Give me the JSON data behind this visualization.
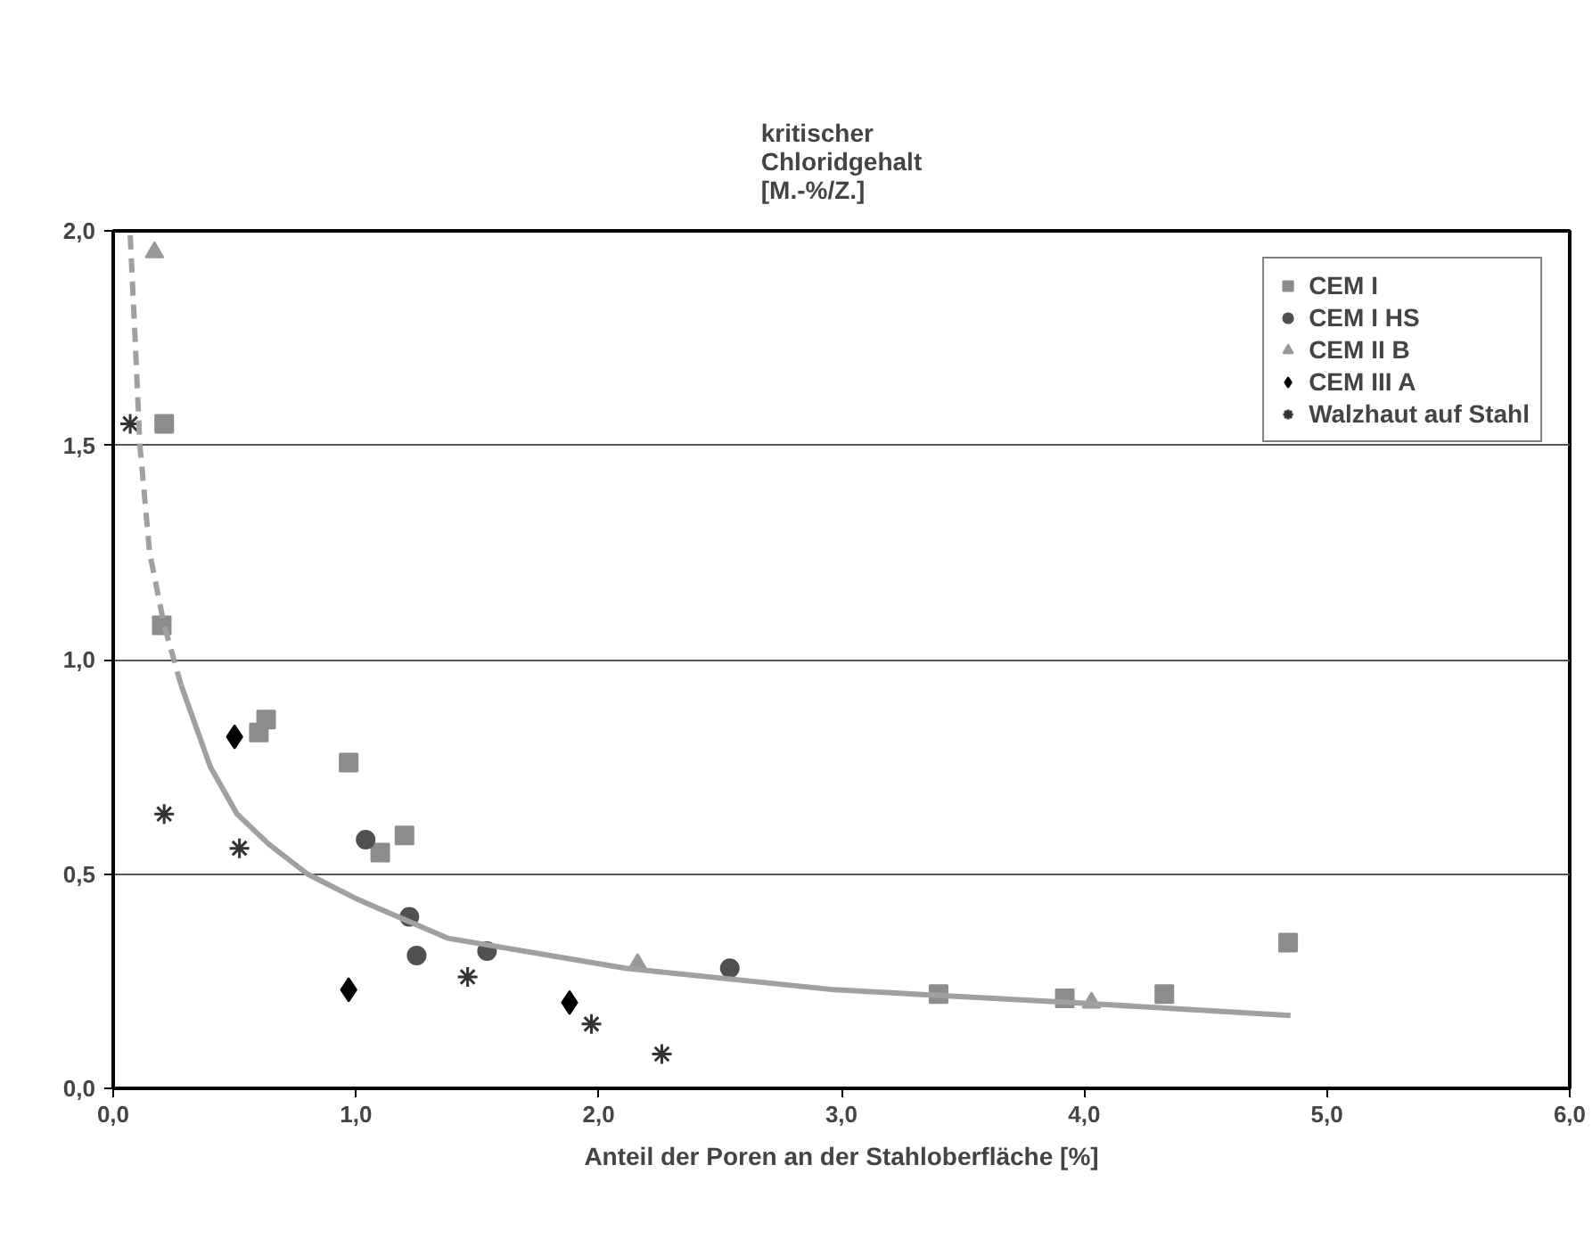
{
  "chart_data": {
    "type": "scatter",
    "ylabel": "kritischer\nChloridgehalt\n[M.-%/Z.]",
    "xlabel": "Anteil der Poren an der Stahloberfläche [%]",
    "xlim": [
      0,
      6
    ],
    "ylim": [
      0,
      2
    ],
    "xticks": [
      {
        "value": 0,
        "label": "0,0"
      },
      {
        "value": 1,
        "label": "1,0"
      },
      {
        "value": 2,
        "label": "2,0"
      },
      {
        "value": 3,
        "label": "3,0"
      },
      {
        "value": 4,
        "label": "4,0"
      },
      {
        "value": 5,
        "label": "5,0"
      },
      {
        "value": 6,
        "label": "6,0"
      }
    ],
    "yticks": [
      {
        "value": 0,
        "label": "0,0"
      },
      {
        "value": 0.5,
        "label": "0,5"
      },
      {
        "value": 1,
        "label": "1,0"
      },
      {
        "value": 1.5,
        "label": "1,5"
      },
      {
        "value": 2,
        "label": "2,0"
      }
    ],
    "grid": "y",
    "legend": "top right",
    "series": [
      {
        "name": "CEM I",
        "color": "#8c8c8c",
        "marker": "square",
        "x": [
          0.21,
          0.2,
          0.6,
          0.63,
          0.97,
          1.1,
          1.2,
          3.4,
          3.92,
          4.33,
          4.84
        ],
        "values": [
          1.55,
          1.08,
          0.83,
          0.86,
          0.76,
          0.55,
          0.59,
          0.22,
          0.21,
          0.22,
          0.34
        ]
      },
      {
        "name": "CEM I HS",
        "color": "#505050",
        "marker": "circle",
        "x": [
          1.04,
          1.22,
          1.25,
          1.54,
          2.54
        ],
        "values": [
          0.58,
          0.4,
          0.31,
          0.32,
          0.28
        ]
      },
      {
        "name": "CEM II B",
        "color": "#999999",
        "marker": "triangle",
        "x": [
          0.17,
          2.16,
          4.03
        ],
        "values": [
          1.95,
          0.29,
          0.2
        ]
      },
      {
        "name": "CEM III A",
        "color": "#000000",
        "marker": "diamond",
        "x": [
          0.5,
          0.97,
          1.88
        ],
        "values": [
          0.82,
          0.23,
          0.2
        ]
      },
      {
        "name": "Walzhaut auf Stahl",
        "color": "#333333",
        "marker": "cross",
        "x": [
          0.07,
          0.21,
          0.52,
          1.46,
          1.97,
          2.26
        ],
        "values": [
          1.55,
          0.64,
          0.56,
          0.26,
          0.15,
          0.08
        ]
      },
      {
        "type": "line",
        "line_style": "dashed",
        "color": "#a0a0a0",
        "x": [
          0.07,
          0.09,
          0.11,
          0.15,
          0.21,
          0.25,
          0.28
        ],
        "values": [
          1.99,
          1.75,
          1.5,
          1.25,
          1.08,
          1.0,
          0.94
        ]
      },
      {
        "type": "line",
        "line_style": "solid",
        "color": "#a0a0a0",
        "x": [
          0.28,
          0.4,
          0.51,
          0.64,
          0.8,
          1.01,
          1.38,
          2.11,
          2.97,
          3.95,
          4.85
        ],
        "values": [
          0.94,
          0.75,
          0.64,
          0.57,
          0.5,
          0.44,
          0.35,
          0.28,
          0.23,
          0.2,
          0.17
        ]
      }
    ]
  }
}
